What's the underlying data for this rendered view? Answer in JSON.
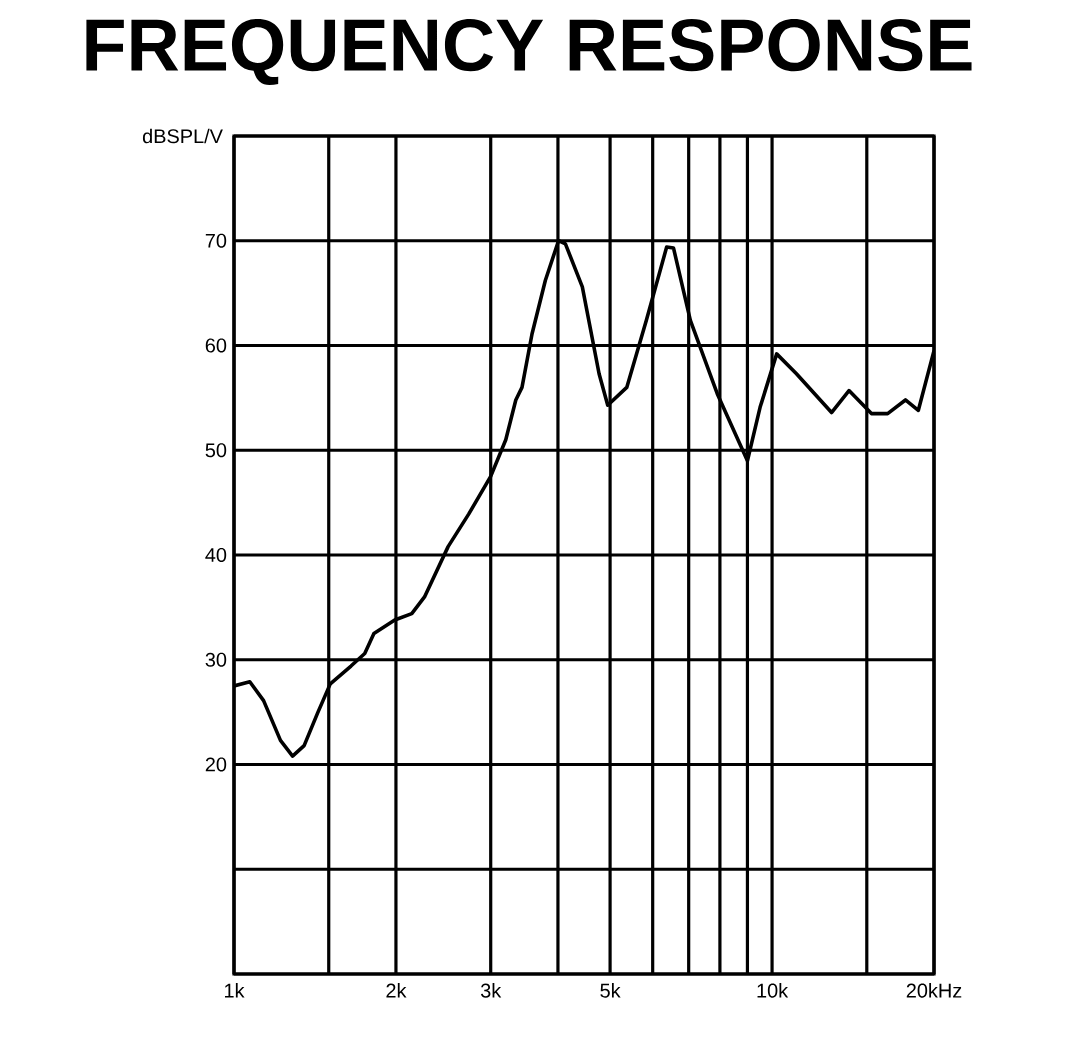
{
  "chart_data": {
    "type": "line",
    "title": "FREQUENCY RESPONSE",
    "ylabel": "dBSPL/V",
    "log": "x",
    "grid": true,
    "xlim": [
      1,
      20
    ],
    "xticks": [
      {
        "value": 1,
        "label": "1k"
      },
      {
        "value": 1.5,
        "label": null
      },
      {
        "value": 2,
        "label": "2k"
      },
      {
        "value": 3,
        "label": "3k"
      },
      {
        "value": 4,
        "label": null
      },
      {
        "value": 5,
        "label": "5k"
      },
      {
        "value": 6,
        "label": null
      },
      {
        "value": 7,
        "label": null
      },
      {
        "value": 8,
        "label": null
      },
      {
        "value": 9,
        "label": null
      },
      {
        "value": 10,
        "label": "10k"
      },
      {
        "value": 15,
        "label": null
      },
      {
        "value": 20,
        "label": "20kHz"
      }
    ],
    "ylim": [
      0,
      80
    ],
    "yticks": [
      {
        "value": 0,
        "label": null
      },
      {
        "value": 10,
        "label": null
      },
      20,
      30,
      40,
      50,
      60,
      70,
      {
        "value": 80,
        "label": null
      }
    ],
    "series": [
      {
        "color": "#000000",
        "x": [
          1,
          1.07,
          1.135,
          1.22,
          1.285,
          1.35,
          1.43,
          1.51,
          1.65,
          1.75,
          1.82,
          1.99,
          2.14,
          2.26,
          2.5,
          2.73,
          3,
          3.2,
          3.34,
          3.43,
          3.58,
          3.79,
          4.01,
          4.13,
          4.44,
          4.77,
          4.95,
          5.37,
          5.84,
          6.37,
          6.56,
          7.05,
          7.91,
          9,
          9.5,
          10.2,
          11.1,
          12.9,
          13.9,
          15.3,
          16.4,
          17.7,
          18.7,
          20
        ],
        "values": [
          27.5,
          27.9,
          26.1,
          22.3,
          20.8,
          21.8,
          24.9,
          27.7,
          29.4,
          30.6,
          32.5,
          33.8,
          34.4,
          36,
          40.8,
          43.9,
          47.5,
          51,
          54.8,
          56,
          61.1,
          66.2,
          70,
          69.7,
          65.6,
          57.3,
          54.3,
          56,
          62.4,
          69.4,
          69.3,
          62.4,
          55.4,
          49,
          54.1,
          59.2,
          57.3,
          53.6,
          55.7,
          53.5,
          53.5,
          54.8,
          53.8,
          59.5
        ]
      }
    ]
  }
}
